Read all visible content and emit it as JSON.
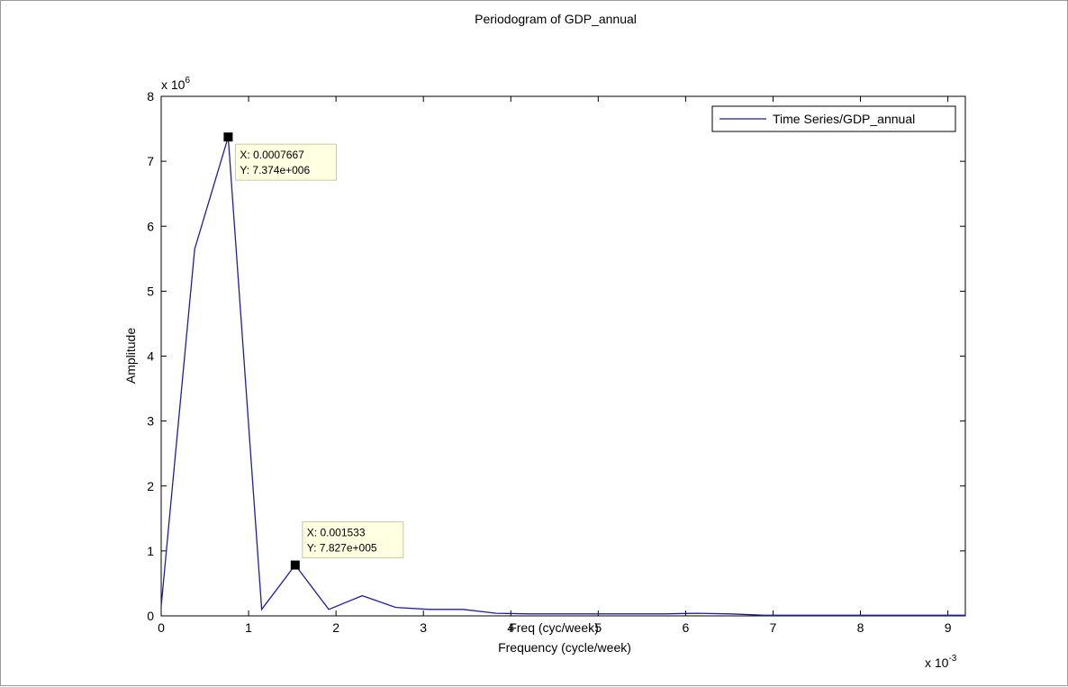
{
  "chart_data": {
    "type": "line",
    "title": "Periodogram of GDP_annual",
    "xlabel": "Frequency (cycle/week)",
    "xlabel_overlap": "Freq (cyc/week)",
    "ylabel": "Amplitude",
    "x_exponent_label": "x 10",
    "x_exponent": "-3",
    "y_exponent_label": "x 10",
    "y_exponent": "6",
    "xlim": [
      0,
      9.2
    ],
    "ylim": [
      0,
      8
    ],
    "x_ticks": [
      0,
      1,
      2,
      3,
      4,
      5,
      6,
      7,
      8,
      9
    ],
    "y_ticks": [
      0,
      1,
      2,
      3,
      4,
      5,
      6,
      7,
      8
    ],
    "grid": false,
    "legend_position": "top-right",
    "series": [
      {
        "name": "Time Series/GDP_annual",
        "color": "#1f1f9e",
        "x": [
          0,
          0.383,
          0.767,
          1.15,
          1.533,
          1.917,
          2.3,
          2.683,
          3.067,
          3.45,
          3.833,
          4.217,
          4.6,
          4.983,
          5.367,
          5.75,
          6.133,
          6.517,
          6.9,
          7.283,
          7.667,
          8.05,
          8.433,
          8.817,
          9.2
        ],
        "y": [
          0.15,
          5.65,
          7.374,
          0.1,
          0.7827,
          0.1,
          0.31,
          0.13,
          0.1,
          0.1,
          0.04,
          0.03,
          0.03,
          0.03,
          0.03,
          0.03,
          0.04,
          0.03,
          0.01,
          0.01,
          0.01,
          0.01,
          0.01,
          0.01,
          0.01
        ]
      }
    ],
    "datatips": [
      {
        "x": 0.7667,
        "y": 7.374,
        "x_text": "X: 0.0007667",
        "y_text": "Y: 7.374e+006",
        "placement": "lower-right"
      },
      {
        "x": 1.533,
        "y": 0.7827,
        "x_text": "X: 0.001533",
        "y_text": "Y: 7.827e+005",
        "placement": "upper-right"
      }
    ]
  }
}
